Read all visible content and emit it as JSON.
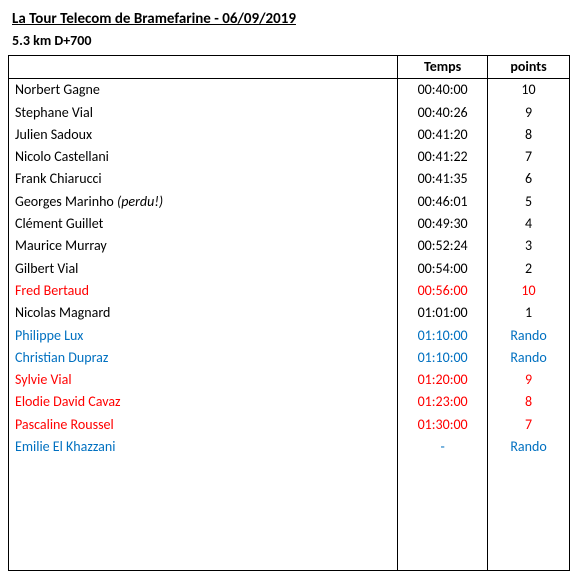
{
  "header": {
    "title": "La Tour Telecom de Bramefarine - 06/09/2019",
    "subtitle": "5.3 km D+700"
  },
  "table": {
    "columns": {
      "name": "",
      "time": "Temps",
      "points": "points"
    },
    "rows": [
      {
        "name": "Norbert Gagne",
        "note": "",
        "time": "00:40:00",
        "points": "10",
        "color": "black"
      },
      {
        "name": "Stephane Vial",
        "note": "",
        "time": "00:40:26",
        "points": "9",
        "color": "black"
      },
      {
        "name": "Julien Sadoux",
        "note": "",
        "time": "00:41:20",
        "points": "8",
        "color": "black"
      },
      {
        "name": "Nicolo Castellani",
        "note": "",
        "time": "00:41:22",
        "points": "7",
        "color": "black"
      },
      {
        "name": "Frank Chiarucci",
        "note": "",
        "time": "00:41:35",
        "points": "6",
        "color": "black"
      },
      {
        "name": "Georges Marinho",
        "note": "(perdu!)",
        "time": "00:46:01",
        "points": "5",
        "color": "black"
      },
      {
        "name": "Clément Guillet",
        "note": "",
        "time": "00:49:30",
        "points": "4",
        "color": "black"
      },
      {
        "name": "Maurice Murray",
        "note": "",
        "time": "00:52:24",
        "points": "3",
        "color": "black"
      },
      {
        "name": "Gilbert Vial",
        "note": "",
        "time": "00:54:00",
        "points": "2",
        "color": "black"
      },
      {
        "name": "Fred Bertaud",
        "note": "",
        "time": "00:56:00",
        "points": "10",
        "color": "red"
      },
      {
        "name": "Nicolas Magnard",
        "note": "",
        "time": "01:01:00",
        "points": "1",
        "color": "black"
      },
      {
        "name": "Philippe Lux",
        "note": "",
        "time": "01:10:00",
        "points": "Rando",
        "color": "blue"
      },
      {
        "name": "Christian Dupraz",
        "note": "",
        "time": "01:10:00",
        "points": "Rando",
        "color": "blue"
      },
      {
        "name": "Sylvie Vial",
        "note": "",
        "time": "01:20:00",
        "points": "9",
        "color": "red"
      },
      {
        "name": "Elodie David Cavaz",
        "note": "",
        "time": "01:23:00",
        "points": "8",
        "color": "red"
      },
      {
        "name": "Pascaline Roussel",
        "note": "",
        "time": "01:30:00",
        "points": "7",
        "color": "red"
      },
      {
        "name": "Emilie El Khazzani",
        "note": "",
        "time": "-",
        "points": "Rando",
        "color": "blue"
      }
    ],
    "blank_filler_rows": 5
  },
  "colors": {
    "black": "#000000",
    "red": "#ff0000",
    "blue": "#0070c0"
  }
}
